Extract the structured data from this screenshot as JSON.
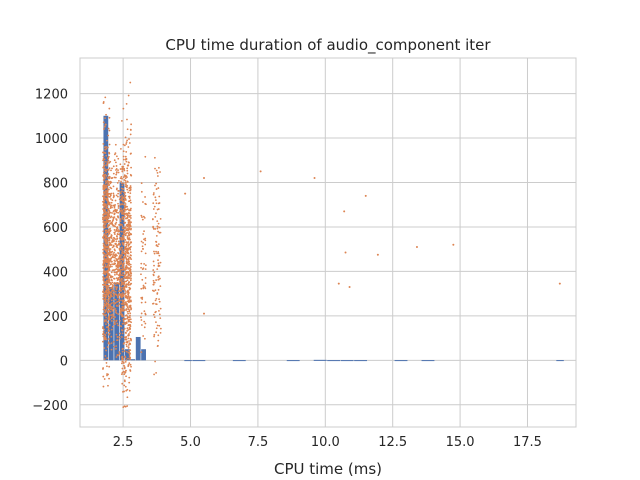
{
  "chart_data": {
    "type": "scatter",
    "title": "CPU time duration of audio_component iter",
    "xlabel": "CPU time (ms)",
    "ylabel": "",
    "xlim": [
      0.9,
      19.3
    ],
    "ylim": [
      -300,
      1360
    ],
    "grid": true,
    "xticks": [
      2.5,
      5.0,
      7.5,
      10.0,
      12.5,
      15.0,
      17.5
    ],
    "xtick_labels": [
      "2.5",
      "5.0",
      "7.5",
      "10.0",
      "12.5",
      "15.0",
      "17.5"
    ],
    "yticks": [
      -200,
      0,
      200,
      400,
      600,
      800,
      1000,
      1200
    ],
    "ytick_labels": [
      "−200",
      "0",
      "200",
      "400",
      "600",
      "800",
      "1000",
      "1200"
    ],
    "colors": {
      "histogram": "#4c72b0",
      "scatter": "#dd8452"
    },
    "histogram": {
      "bin_edges": [
        1.77,
        1.97,
        2.17,
        2.37,
        2.57,
        2.77,
        2.97,
        3.17,
        3.37,
        3.57,
        3.77,
        3.97,
        4.17,
        4.37,
        4.57,
        4.77,
        5.07,
        5.57,
        6.07,
        6.57,
        7.07,
        7.57,
        8.07,
        8.57,
        9.07,
        9.57,
        10.07,
        10.57,
        11.07,
        11.57,
        12.07,
        12.57,
        13.07,
        13.57,
        14.07,
        14.57,
        15.07,
        15.57,
        16.07,
        16.57,
        17.07,
        17.57,
        18.07,
        18.57,
        18.87
      ],
      "counts": [
        1100,
        330,
        350,
        800,
        50,
        5,
        105,
        50,
        0,
        0,
        0,
        0,
        0,
        0,
        0,
        1,
        1,
        0,
        0,
        1,
        0,
        0,
        0,
        1,
        0,
        2,
        1,
        1,
        1,
        0,
        0,
        1,
        0,
        1,
        0,
        0,
        0,
        0,
        0,
        0,
        0,
        0,
        0,
        1
      ]
    },
    "scatter_outliers": [
      {
        "x": 4.8,
        "y": 750
      },
      {
        "x": 5.5,
        "y": 820
      },
      {
        "x": 5.5,
        "y": 210
      },
      {
        "x": 7.6,
        "y": 850
      },
      {
        "x": 9.6,
        "y": 820
      },
      {
        "x": 10.5,
        "y": 345
      },
      {
        "x": 10.7,
        "y": 670
      },
      {
        "x": 10.75,
        "y": 485
      },
      {
        "x": 10.9,
        "y": 330
      },
      {
        "x": 11.5,
        "y": 740
      },
      {
        "x": 11.95,
        "y": 475
      },
      {
        "x": 13.4,
        "y": 510
      },
      {
        "x": 14.75,
        "y": 520
      },
      {
        "x": 18.7,
        "y": 345
      }
    ],
    "scatter_clusters": [
      {
        "x_range": [
          1.75,
          2.0
        ],
        "y_range": [
          -120,
          1290
        ],
        "count": 650
      },
      {
        "x_range": [
          2.0,
          2.45
        ],
        "y_range": [
          0,
          1100
        ],
        "count": 500
      },
      {
        "x_range": [
          2.45,
          2.8
        ],
        "y_range": [
          -220,
          1270
        ],
        "count": 700
      },
      {
        "x_range": [
          3.15,
          3.35
        ],
        "y_range": [
          -30,
          1000
        ],
        "count": 60
      },
      {
        "x_range": [
          3.6,
          3.9
        ],
        "y_range": [
          -100,
          1200
        ],
        "count": 120
      }
    ]
  }
}
